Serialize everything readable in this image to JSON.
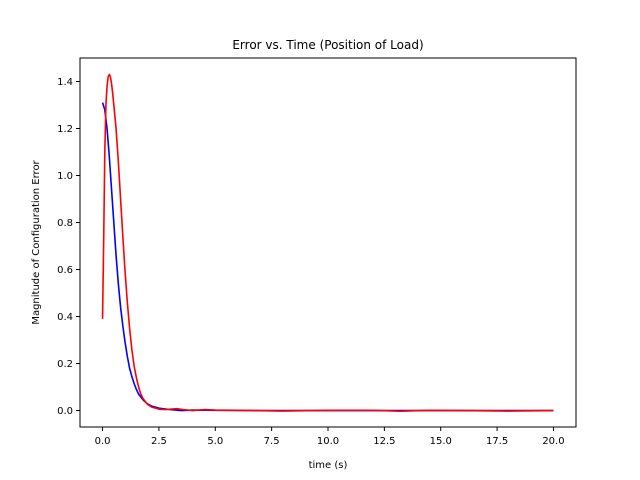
{
  "chart_data": {
    "type": "line",
    "title": "Error vs. Time (Position of Load)",
    "xlabel": "time (s)",
    "ylabel": "Magnitude of Configuration Error",
    "xlim": [
      -1.0,
      21.0
    ],
    "ylim": [
      -0.07,
      1.5
    ],
    "xticks": [
      0.0,
      2.5,
      5.0,
      7.5,
      10.0,
      12.5,
      15.0,
      17.5,
      20.0
    ],
    "xtick_labels": [
      "0.0",
      "2.5",
      "5.0",
      "7.5",
      "10.0",
      "12.5",
      "15.0",
      "17.5",
      "20.0"
    ],
    "yticks": [
      0.0,
      0.2,
      0.4,
      0.6,
      0.8,
      1.0,
      1.2,
      1.4
    ],
    "ytick_labels": [
      "0.0",
      "0.2",
      "0.4",
      "0.6",
      "0.8",
      "1.0",
      "1.2",
      "1.4"
    ],
    "grid": false,
    "series": [
      {
        "color": "#0000ff",
        "x": [
          0.0,
          0.1,
          0.2,
          0.3,
          0.4,
          0.5,
          0.6,
          0.7,
          0.8,
          0.9,
          1.0,
          1.1,
          1.2,
          1.3,
          1.4,
          1.5,
          1.6,
          1.8,
          2.0,
          2.2,
          2.5,
          3.0,
          3.5,
          4.0,
          5.0,
          7.0,
          10.0,
          15.0,
          20.0
        ],
        "y": [
          1.31,
          1.28,
          1.2,
          1.08,
          0.94,
          0.8,
          0.66,
          0.54,
          0.44,
          0.36,
          0.29,
          0.23,
          0.18,
          0.145,
          0.115,
          0.09,
          0.07,
          0.045,
          0.028,
          0.018,
          0.01,
          0.004,
          0.0,
          0.002,
          0.001,
          0.0,
          0.0,
          0.0,
          0.0
        ]
      },
      {
        "color": "#ff0000",
        "x": [
          0.0,
          0.05,
          0.1,
          0.15,
          0.2,
          0.25,
          0.3,
          0.35,
          0.4,
          0.45,
          0.5,
          0.6,
          0.7,
          0.8,
          0.9,
          1.0,
          1.1,
          1.2,
          1.3,
          1.4,
          1.5,
          1.6,
          1.7,
          1.8,
          2.0,
          2.2,
          2.5,
          2.8,
          3.0,
          3.3,
          3.6,
          4.0,
          4.5,
          5.0,
          6.0,
          8.0,
          10.0,
          12.0,
          13.2,
          14.5,
          16.0,
          18.0,
          20.0
        ],
        "y": [
          0.39,
          0.72,
          1.1,
          1.3,
          1.38,
          1.42,
          1.43,
          1.42,
          1.39,
          1.35,
          1.3,
          1.2,
          1.06,
          0.9,
          0.74,
          0.59,
          0.46,
          0.35,
          0.26,
          0.19,
          0.14,
          0.1,
          0.07,
          0.05,
          0.026,
          0.014,
          0.006,
          0.004,
          0.006,
          0.008,
          0.004,
          0.0,
          0.004,
          0.002,
          0.001,
          -0.002,
          0.001,
          0.001,
          -0.003,
          0.001,
          0.0,
          -0.002,
          0.0
        ]
      }
    ]
  }
}
